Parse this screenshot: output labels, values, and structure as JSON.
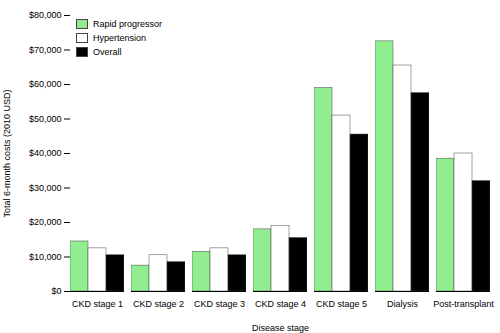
{
  "chart_data": {
    "type": "bar",
    "xlabel": "Disease stage",
    "ylabel": "Total 6-month costs (2010 USD)",
    "categories": [
      "CKD stage 1",
      "CKD stage 2",
      "CKD stage 3",
      "CKD stage 4",
      "CKD stage 5",
      "Dialysis",
      "Post-transplant"
    ],
    "series": [
      {
        "name": "Rapid progressor",
        "color": "#90EE90",
        "values": [
          14500,
          7500,
          11500,
          18000,
          59000,
          72500,
          38500
        ]
      },
      {
        "name": "Hypertension",
        "color": "#ffffff",
        "values": [
          12500,
          10500,
          12500,
          19000,
          51000,
          65500,
          40000
        ]
      },
      {
        "name": "Overall",
        "color": "#000000",
        "values": [
          10500,
          8500,
          10500,
          15500,
          45500,
          57500,
          32000
        ]
      }
    ],
    "ylim": [
      0,
      80000
    ],
    "yticks": [
      {
        "value": 0,
        "label": "$0"
      },
      {
        "value": 10000,
        "label": "$10,000"
      },
      {
        "value": 20000,
        "label": "$20,000"
      },
      {
        "value": 30000,
        "label": "$30,000"
      },
      {
        "value": 40000,
        "label": "$40,000"
      },
      {
        "value": 50000,
        "label": "$50,000"
      },
      {
        "value": 60000,
        "label": "$60,000"
      },
      {
        "value": 70000,
        "label": "$70,000"
      },
      {
        "value": 80000,
        "label": "$80,000"
      }
    ],
    "grid": false,
    "legend": "upper left"
  }
}
